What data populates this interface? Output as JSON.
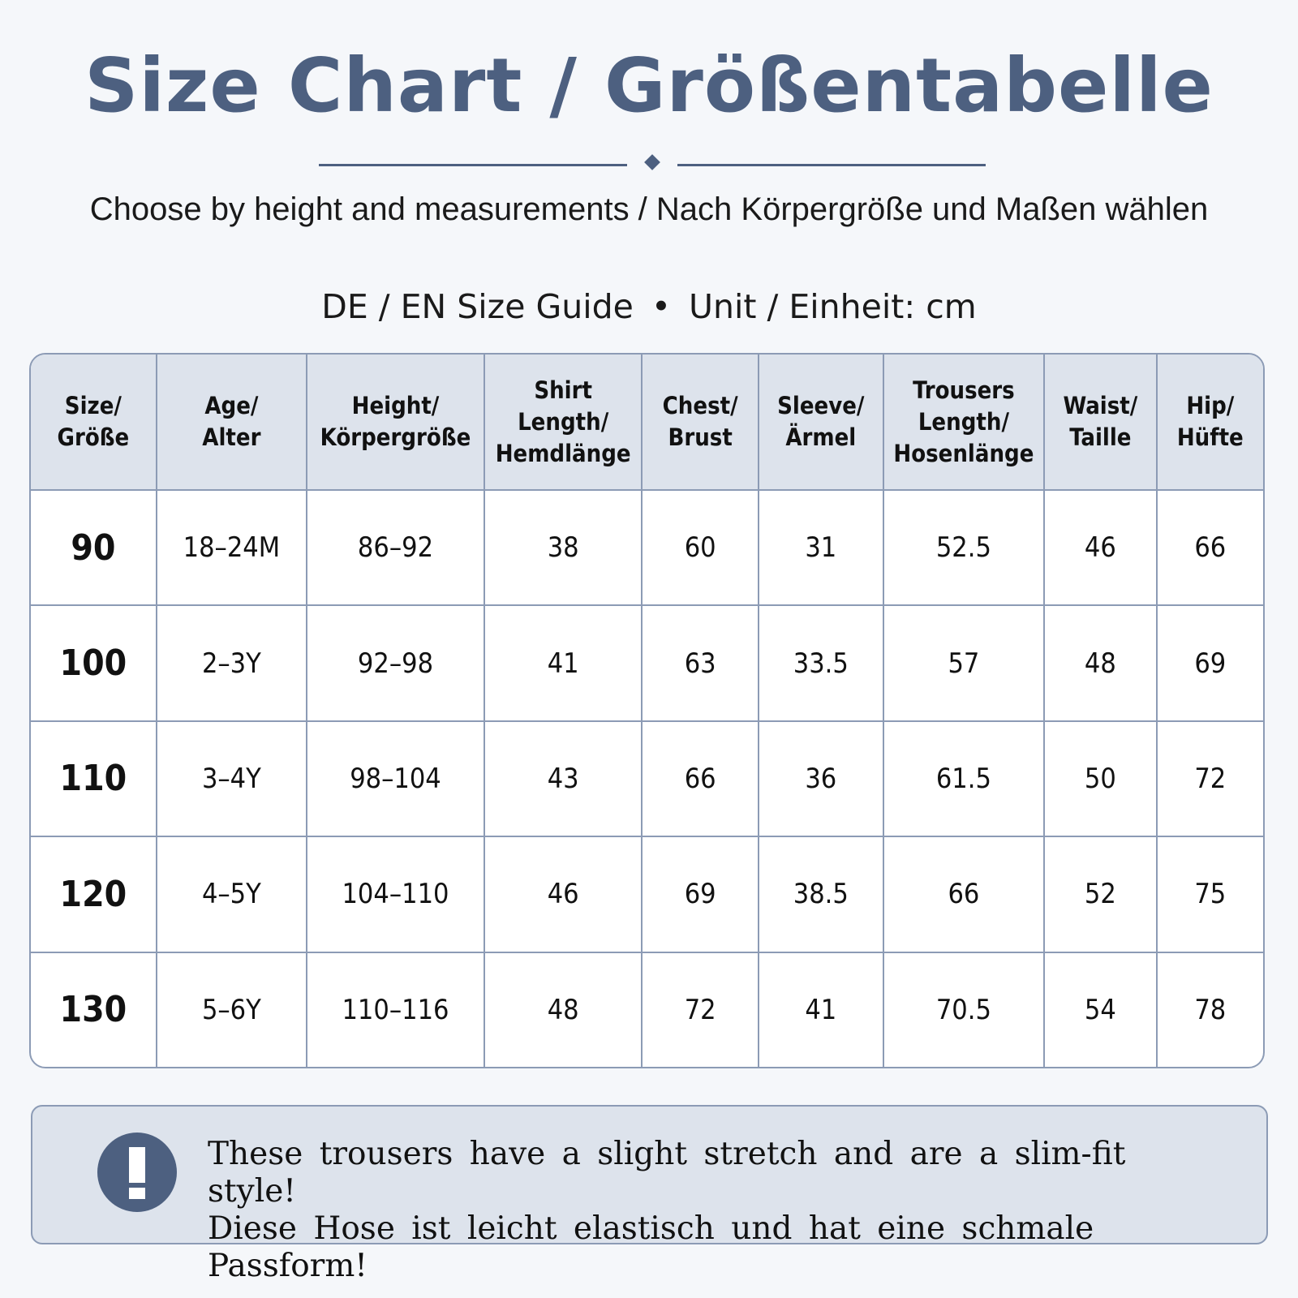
{
  "header": {
    "title": "Size Chart / Größentabelle",
    "subtitle": "Choose by height and measurements / Nach Körpergröße und Maßen wählen",
    "guide_left": "DE / EN Size Guide",
    "guide_sep": "•",
    "guide_right": "Unit / Einheit: cm"
  },
  "table": {
    "headers": [
      "Size/\nGröße",
      "Age/\nAlter",
      "Height/\nKörpergröße",
      "Shirt\nLength/\nHemdlänge",
      "Chest/\nBrust",
      "Sleeve/\nÄrmel",
      "Trousers\nLength/\nHosenlänge",
      "Waist/\nTaille",
      "Hip/\nHüfte"
    ],
    "rows": [
      [
        "90",
        "18–24M",
        "86–92",
        "38",
        "60",
        "31",
        "52.5",
        "46",
        "66"
      ],
      [
        "100",
        "2–3Y",
        "92–98",
        "41",
        "63",
        "33.5",
        "57",
        "48",
        "69"
      ],
      [
        "110",
        "3–4Y",
        "98–104",
        "43",
        "66",
        "36",
        "61.5",
        "50",
        "72"
      ],
      [
        "120",
        "4–5Y",
        "104–110",
        "46",
        "69",
        "38.5",
        "66",
        "52",
        "75"
      ],
      [
        "130",
        "5–6Y",
        "110–116",
        "48",
        "72",
        "41",
        "70.5",
        "54",
        "78"
      ]
    ]
  },
  "note": {
    "icon": "exclamation-icon",
    "line1": "These trousers have a slight stretch and are a slim-fit style!",
    "line2": "Diese Hose ist leicht elastisch und hat eine schmale Passform!"
  },
  "colors": {
    "accent": "#4d6080",
    "header_bg": "#dde3ec",
    "border": "#8c9bb5",
    "page_bg": "#f5f7fa"
  }
}
